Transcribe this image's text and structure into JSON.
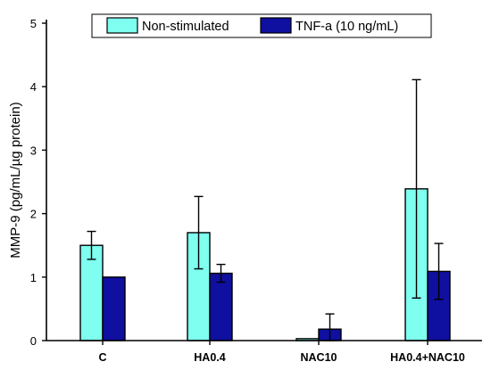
{
  "chart_data": {
    "type": "bar",
    "categories": [
      "C",
      "HA0.4",
      "NAC10",
      "HA0.4+NAC10"
    ],
    "series": [
      {
        "name": "Non-stimulated",
        "color": "#7FFFF0",
        "values": [
          1.5,
          1.7,
          0.03,
          2.39
        ],
        "errors": [
          0.22,
          0.57,
          0.0,
          1.72
        ]
      },
      {
        "name": "TNF-a (10 ng/mL)",
        "color": "#0F0FA0",
        "values": [
          1.0,
          1.06,
          0.18,
          1.09
        ],
        "errors": [
          0.0,
          0.14,
          0.24,
          0.44
        ]
      }
    ],
    "ylabel": "MMP-9 (pg/mL/µg protein)",
    "xlabel": "",
    "ylim": [
      0,
      5
    ],
    "yticks": [
      0,
      1,
      2,
      3,
      4,
      5
    ],
    "grid": false,
    "legend_position": "top"
  }
}
